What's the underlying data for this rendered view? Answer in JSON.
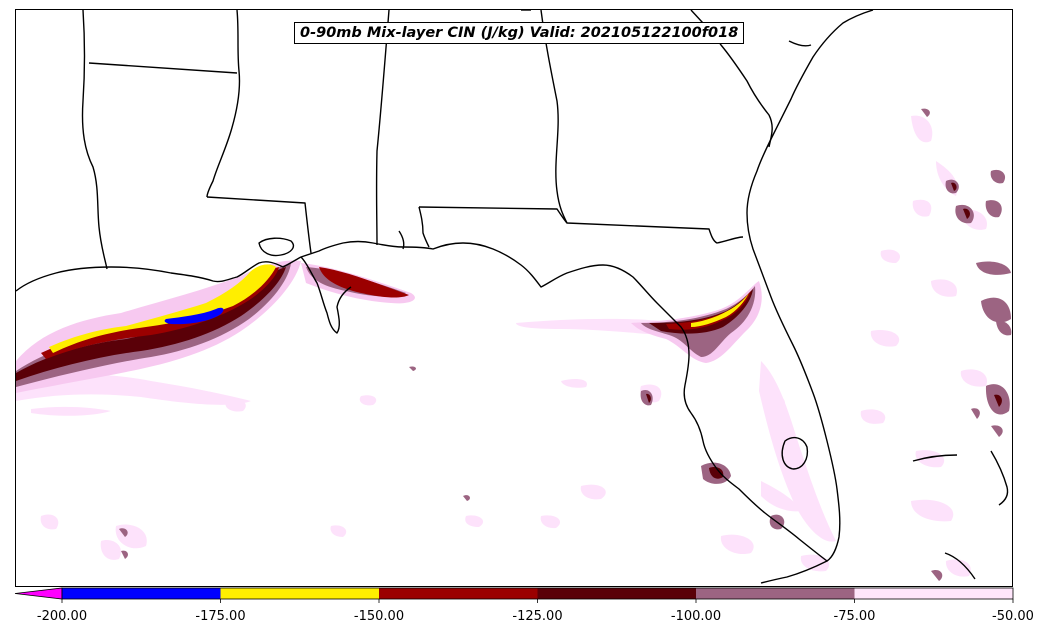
{
  "title": "0-90mb Mix-layer CIN (J/kg) Valid: 202105122100f018",
  "colorbar": {
    "extend": "min",
    "extend_color": "#ff00ff",
    "bins": [
      {
        "from": -200,
        "to": -175,
        "color": "#0000ff"
      },
      {
        "from": -175,
        "to": -150,
        "color": "#ffee00"
      },
      {
        "from": -150,
        "to": -125,
        "color": "#9b0000"
      },
      {
        "from": -125,
        "to": -100,
        "color": "#5a0008"
      },
      {
        "from": -100,
        "to": -75,
        "color": "#9c6482"
      },
      {
        "from": -75,
        "to": -50,
        "color": "#ffe6fb"
      }
    ],
    "ticks": [
      "-200.00",
      "-175.00",
      "-150.00",
      "-125.00",
      "-100.00",
      "-75.00",
      "-50.00"
    ]
  },
  "palette": {
    "very_light": "#fde2fb",
    "light": "#f7c9f0",
    "mauve": "#9c6482",
    "dark": "#5a0008",
    "red": "#9b0000",
    "yellow": "#ffee00",
    "blue": "#0000ff"
  }
}
